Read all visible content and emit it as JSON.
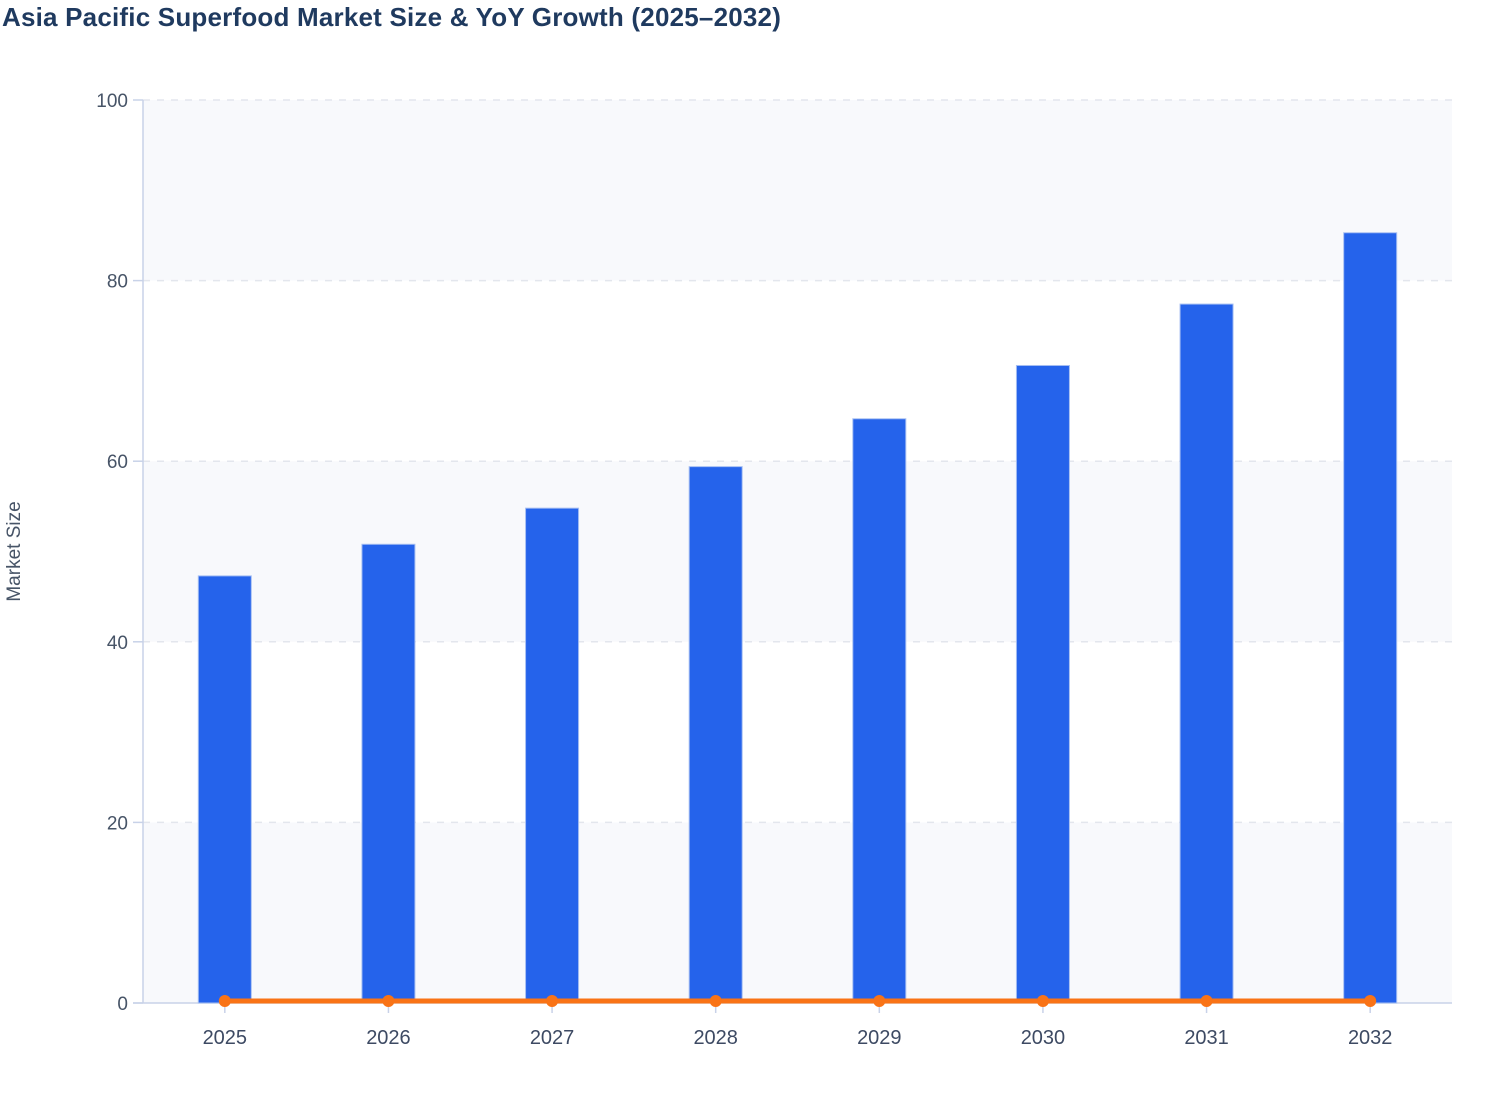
{
  "header": {
    "title": "Asia Pacific Superfood Market Size & YoY Growth (2025–2032)"
  },
  "colors": {
    "bar": "#2563eb",
    "bar_edge": "#a6bff2",
    "line": "#f97316",
    "title_text": "#1f3a5f",
    "axis_line": "#c8d2e8",
    "grid_line": "#e3e6ed",
    "band_fill": "#f8f9fc",
    "tick_text": "#475467",
    "category_text": "#3d4a63"
  },
  "chart_data": {
    "type": "bar",
    "title": "Asia Pacific Superfood Market Size & YoY Growth (2025–2032)",
    "categories": [
      "2025",
      "2026",
      "2027",
      "2028",
      "2029",
      "2030",
      "2031",
      "2032"
    ],
    "series": [
      {
        "name": "Market Size",
        "type": "bar",
        "values": [
          47.3,
          50.8,
          54.8,
          59.4,
          64.7,
          70.6,
          77.4,
          85.3
        ]
      },
      {
        "name": "YoY Growth",
        "type": "line",
        "values": [
          0,
          0,
          0,
          0,
          0,
          0,
          0,
          0
        ]
      }
    ],
    "xlabel": "",
    "ylabel": "Market Size",
    "ylim": [
      0,
      100
    ],
    "yticks": [
      0,
      20,
      40,
      60,
      80,
      100
    ],
    "grid": "horizontal-dashed",
    "plot_bands": "alternating-horizontal-from-top",
    "legend_position": "none"
  }
}
